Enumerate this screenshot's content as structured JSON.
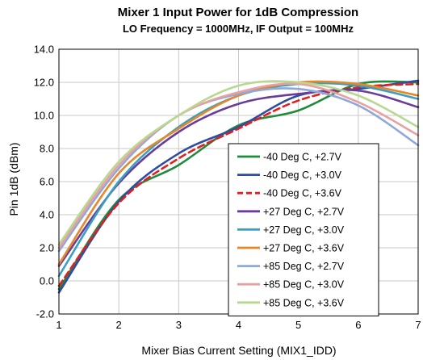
{
  "chart_data": {
    "type": "line",
    "title": "Mixer 1 Input Power for 1dB Compression",
    "subtitle": "LO Frequency = 1000MHz, IF Output = 100MHz",
    "xlabel": "Mixer Bias Current Setting (MIX1_IDD)",
    "ylabel": "Pin 1dB (dBm)",
    "xlim": [
      1,
      7
    ],
    "ylim": [
      -2,
      14
    ],
    "xticks": [
      1,
      2,
      3,
      4,
      5,
      6,
      7
    ],
    "xtick_labels": [
      "1",
      "2",
      "3",
      "4",
      "5",
      "6",
      "7"
    ],
    "yticks": [
      -2,
      0,
      2,
      4,
      6,
      8,
      10,
      12,
      14
    ],
    "ytick_labels": [
      "-2.0",
      "0.0",
      "2.0",
      "4.0",
      "6.0",
      "8.0",
      "10.0",
      "12.0",
      "14.0"
    ],
    "grid": true,
    "legend_position": "center-right",
    "x": [
      1,
      2,
      3,
      4,
      5,
      6,
      7
    ],
    "series": [
      {
        "name": "-40 Deg C, +2.7V",
        "color": "#1e8c3a",
        "dash": false,
        "values": [
          -0.5,
          4.9,
          7.0,
          9.4,
          10.3,
          11.9,
          12.0
        ]
      },
      {
        "name": "-40 Deg C, +3.0V",
        "color": "#2e4da3",
        "dash": false,
        "values": [
          -0.7,
          4.8,
          7.7,
          9.3,
          11.2,
          11.6,
          12.1
        ]
      },
      {
        "name": "-40 Deg C, +3.6V",
        "color": "#e02020",
        "dash": true,
        "values": [
          -0.3,
          4.7,
          7.4,
          9.2,
          10.9,
          11.7,
          11.9
        ]
      },
      {
        "name": "+27 Deg C, +2.7V",
        "color": "#6a3d9a",
        "dash": false,
        "values": [
          0.9,
          5.9,
          9.0,
          10.7,
          11.3,
          11.5,
          10.5
        ]
      },
      {
        "name": "+27 Deg C, +3.0V",
        "color": "#3aa0c0",
        "dash": false,
        "values": [
          0.3,
          6.0,
          9.3,
          11.2,
          11.9,
          11.8,
          11.0
        ]
      },
      {
        "name": "+27 Deg C, +3.6V",
        "color": "#e8862a",
        "dash": false,
        "values": [
          1.0,
          6.5,
          9.2,
          11.2,
          12.0,
          11.9,
          11.2
        ]
      },
      {
        "name": "+85 Deg C, +2.7V",
        "color": "#8fa8d8",
        "dash": false,
        "values": [
          1.8,
          6.8,
          10.0,
          11.3,
          11.6,
          10.6,
          8.2
        ]
      },
      {
        "name": "+85 Deg C, +3.0V",
        "color": "#e8a0a0",
        "dash": false,
        "values": [
          2.0,
          7.0,
          10.0,
          11.4,
          11.9,
          10.8,
          8.8
        ]
      },
      {
        "name": "+85 Deg C, +3.6V",
        "color": "#b8d890",
        "dash": false,
        "values": [
          2.2,
          7.2,
          10.0,
          11.8,
          12.0,
          11.2,
          9.3
        ]
      }
    ]
  }
}
